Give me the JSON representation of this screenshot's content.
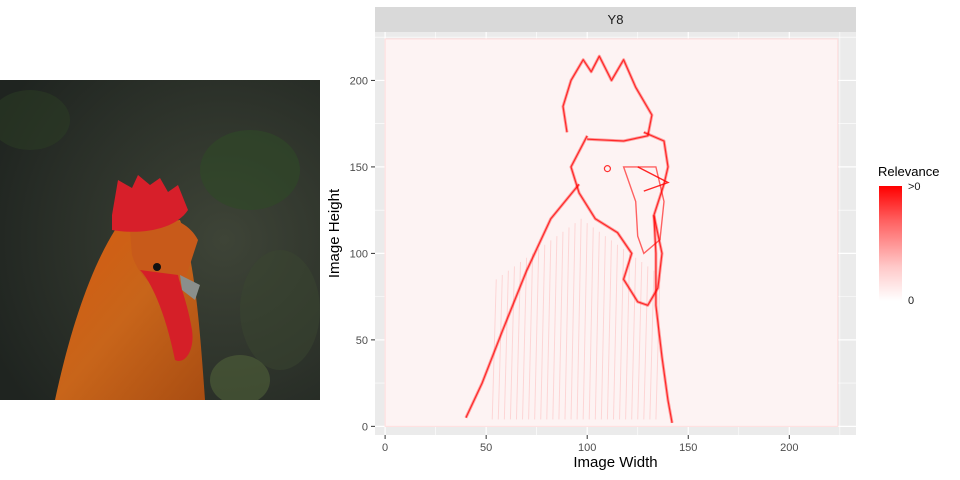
{
  "chart_data": {
    "type": "heatmap",
    "facet_label": "Y8",
    "xlabel": "Image Width",
    "ylabel": "Image Height",
    "xlim": [
      -5,
      233
    ],
    "ylim": [
      -5,
      228
    ],
    "x_ticks": [
      0,
      50,
      100,
      150,
      200
    ],
    "y_ticks": [
      0,
      50,
      100,
      150,
      200
    ],
    "x_tick_labels": [
      "0",
      "50",
      "100",
      "150",
      "200"
    ],
    "y_tick_labels": [
      "0",
      "50",
      "100",
      "150",
      "200"
    ],
    "grid": true,
    "legend": {
      "title": "Relevance",
      "max_label": ">0",
      "min_label": "0",
      "high_color": "#ff0000",
      "low_color": "#ffffff",
      "placement": "right"
    },
    "image_extent": {
      "x": [
        0,
        224
      ],
      "y": [
        0,
        224
      ]
    }
  },
  "colors": {
    "panel_background": "#ebebeb",
    "gridline": "#ffffff",
    "strip_background": "#d9d9d9",
    "relevance_high": "#ff0000"
  },
  "photo": {
    "subject": "rooster-photo"
  }
}
